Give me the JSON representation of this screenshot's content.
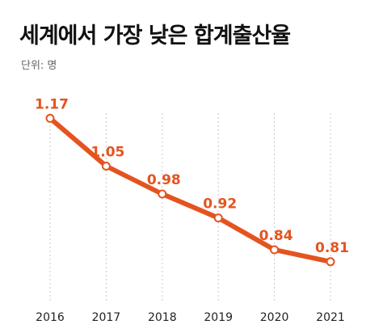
{
  "header": {
    "title": "세계에서 가장 낮은 합계출산율",
    "unit": "단위: 명"
  },
  "colors": {
    "line": "#e4541f",
    "point_fill": "#ffffff",
    "grid": "#c9c9c9"
  },
  "chart_data": {
    "type": "line",
    "title": "세계에서 가장 낮은 합계출산율",
    "subtitle": "단위: 명",
    "x": [
      "2016",
      "2017",
      "2018",
      "2019",
      "2020",
      "2021"
    ],
    "series": [
      {
        "values": [
          1.17,
          1.05,
          0.98,
          0.92,
          0.84,
          0.81
        ],
        "labels": [
          "1.17",
          "1.05",
          "0.98",
          "0.92",
          "0.84",
          "0.81"
        ]
      }
    ],
    "ylim": [
      0.7,
      1.25
    ],
    "grid": "vertical dotted",
    "legend": "none",
    "data_labels": true
  }
}
